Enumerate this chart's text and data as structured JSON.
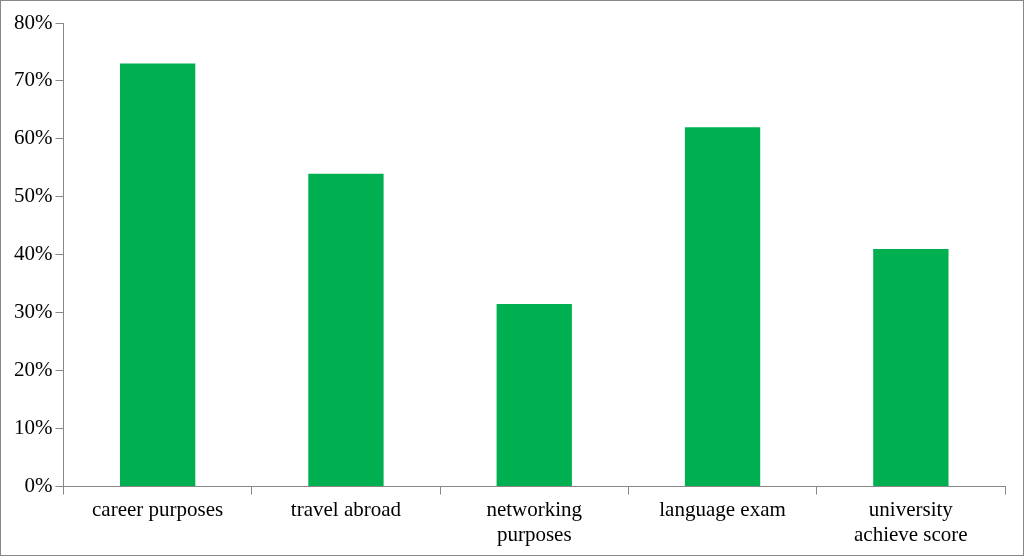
{
  "chart_data": {
    "type": "bar",
    "categories": [
      "career purposes",
      "travel abroad",
      "networking purposes",
      "language exam",
      "university achieve score"
    ],
    "values": [
      73,
      54,
      31.5,
      62,
      41
    ],
    "color": "#00b050",
    "ylim": [
      0,
      80
    ],
    "yticks": [
      {
        "value": 0,
        "label": "0%"
      },
      {
        "value": 10,
        "label": "10%"
      },
      {
        "value": 20,
        "label": "20%"
      },
      {
        "value": 30,
        "label": "30%"
      },
      {
        "value": 40,
        "label": "40%"
      },
      {
        "value": 50,
        "label": "50%"
      },
      {
        "value": 60,
        "label": "60%"
      },
      {
        "value": 70,
        "label": "70%"
      },
      {
        "value": 80,
        "label": "80%"
      }
    ],
    "grid": false,
    "legend": false
  }
}
